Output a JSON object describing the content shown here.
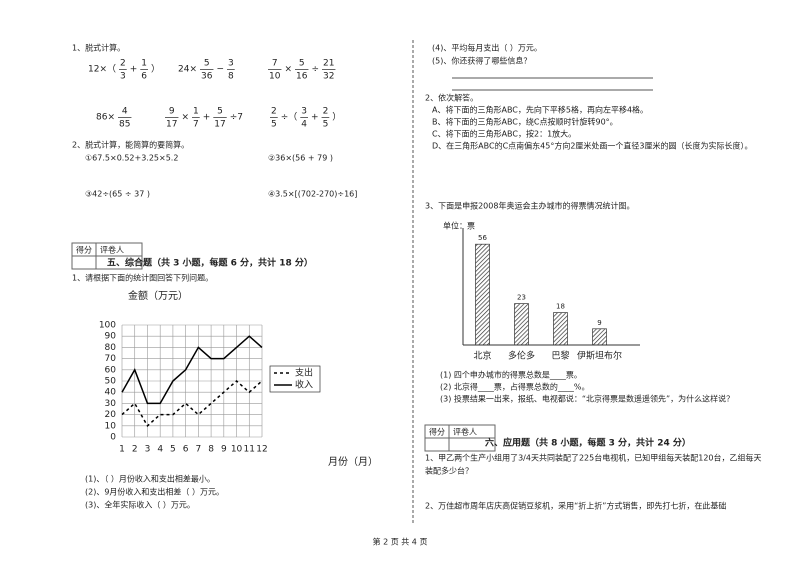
{
  "calc": {
    "heading": "1、脱式计算。",
    "expressions": [
      {
        "parts": [
          "12×（",
          {
            "num": "2",
            "den": "3"
          },
          "+",
          {
            "num": "1",
            "den": "6"
          },
          "）"
        ]
      },
      {
        "parts": [
          "24×",
          {
            "num": "5",
            "den": "36"
          },
          "−",
          {
            "num": "3",
            "den": "8"
          }
        ]
      },
      {
        "parts": [
          {
            "num": "7",
            "den": "10"
          },
          "×",
          {
            "num": "5",
            "den": "16"
          },
          "÷",
          {
            "num": "21",
            "den": "32"
          }
        ]
      },
      {
        "parts": [
          "86×",
          {
            "num": "4",
            "den": "85"
          }
        ]
      },
      {
        "parts": [
          {
            "num": "9",
            "den": "17"
          },
          "×",
          {
            "num": "1",
            "den": "7"
          },
          "+",
          {
            "num": "5",
            "den": "17"
          },
          "÷7"
        ]
      },
      {
        "parts": [
          {
            "num": "2",
            "den": "5"
          },
          "÷（",
          {
            "num": "3",
            "den": "4"
          },
          "+",
          {
            "num": "2",
            "den": "5"
          },
          "）"
        ]
      }
    ]
  },
  "simplify": {
    "heading": "2、脱式计算，能简算的要简算。",
    "items": [
      "①67.5×0.52+3.25×5.2",
      "②36×(56 + 79 )",
      "③42÷(65 ÷ 37 )",
      "④3.5×[(702-270)÷16]"
    ]
  },
  "score_box": [
    "得分",
    "评卷人"
  ],
  "section5": {
    "title": "五、综合题（共 3 小题，每题 6 分，共计 18 分）",
    "q1": "1、请根据下面的统计图回答下列问题。",
    "questions": [
      "(1)、（ ）月份收入和支出相差最小。",
      "(2)、9月份收入和支出相差（ ）万元。",
      "(3)、全年实际收入（ ）万元。"
    ]
  },
  "right": {
    "q4": "(4)、平均每月支出（ ）万元。",
    "q5": "(5)、你还获得了哪些信息？",
    "task2": "2、依次解答。",
    "steps": [
      "A、将下面的三角形ABC，先向下平移5格，再向左平移4格。",
      "B、将下面的三角形ABC，绕C点按顺时针旋转90°。",
      "C、将下面的三角形ABC，按2：1放大。",
      "D、在三角形ABC的C点南偏东45°方向2厘米处画一个直径3厘米的圆（长度为实际长度）。"
    ],
    "task3": "3、下面是申报2008年奥运会主办城市的得票情况统计图。",
    "vote_questions": [
      "(1) 四个申办城市的得票总数是____票。",
      "(2) 北京得____票，占得票总数的____%。",
      "(3) 投票结果一出来，报纸、电视都说：“北京得票是数遥遥领先”，为什么这样说？"
    ]
  },
  "section6": {
    "title": "六、应用题（共 8 小题，每题 3 分，共计 24 分）",
    "lines": [
      "1、甲乙两个生产小组用了3/4天共同装配了225台电视机，已知甲组每天装配120台，乙组每天",
      "装配多少台？",
      "2、万佳超市周年店庆高促销豆浆机，采用“折上折”方式销售，即先打七折，在此基础"
    ]
  },
  "footer": "第 2 页 共 4 页",
  "chart_data": [
    {
      "type": "line",
      "y_label": "金额（万元）",
      "x_label": "月份（月）",
      "x": [
        1,
        2,
        3,
        4,
        5,
        6,
        7,
        8,
        9,
        10,
        11,
        12
      ],
      "xlim": [
        1,
        12
      ],
      "ylim": [
        0,
        100
      ],
      "yticks": [
        0,
        10,
        20,
        30,
        40,
        50,
        60,
        70,
        80,
        90,
        100
      ],
      "grid": true,
      "legend": "right",
      "series": [
        {
          "name": "支出",
          "color": "#000000",
          "line_style": "dashed",
          "values": [
            20,
            30,
            10,
            20,
            20,
            30,
            20,
            30,
            40,
            50,
            40,
            50
          ]
        },
        {
          "name": "收入",
          "color": "#000000",
          "line_style": "solid",
          "values": [
            40,
            60,
            30,
            30,
            50,
            60,
            80,
            70,
            70,
            80,
            90,
            80
          ]
        }
      ]
    },
    {
      "type": "bar",
      "unit_label": "单位：票",
      "categories": [
        "北京",
        "多伦多",
        "巴黎",
        "伊斯坦布尔"
      ],
      "values": [
        56,
        23,
        18,
        9
      ],
      "ylim": [
        0,
        65
      ],
      "color": "#333333",
      "hatch": true
    }
  ]
}
